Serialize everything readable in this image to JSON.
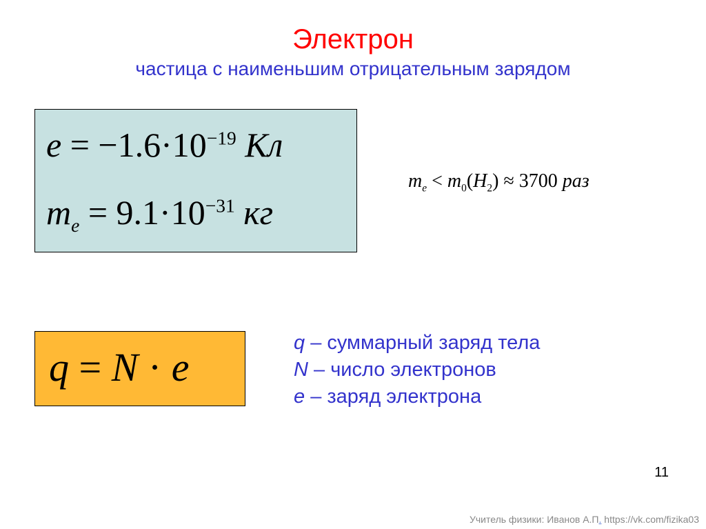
{
  "title": {
    "main": "Электрон",
    "sub": "частица с наименьшим отрицательным зарядом",
    "main_color": "#ff0000",
    "sub_color": "#3333cc",
    "main_fontsize": 40,
    "sub_fontsize": 28
  },
  "box1": {
    "bg": "#c7e1e1",
    "border": "#000000",
    "formula_e": {
      "lhs": "e",
      "eq": "=",
      "sign": "−",
      "coef": "1.6",
      "mult": "·",
      "base": "10",
      "exp": "−19",
      "unit": "Кл"
    },
    "formula_me": {
      "lhs_sym": "m",
      "lhs_sub": "e",
      "eq": "=",
      "coef": "9.1",
      "mult": "·",
      "base": "10",
      "exp": "−31",
      "unit": "кг"
    }
  },
  "side": {
    "m": "m",
    "e": "e",
    "lt": "<",
    "m0": "m",
    "zero": "0",
    "open": "(",
    "H": "H",
    "two": "2",
    "close": ")",
    "approx": "≈",
    "val": "3700",
    "unit": "раз"
  },
  "box2": {
    "bg": "#ffb935",
    "border": "#000000",
    "formula_q": {
      "lhs": "q",
      "eq": "=",
      "N": "N",
      "mult": "·",
      "e": "e"
    }
  },
  "legend": {
    "color": "#3333cc",
    "q_sym": "q",
    "q_txt": " – суммарный заряд тела",
    "n_sym": "N",
    "n_txt": " – число электронов",
    "e_sym": "e",
    "e_txt": " – заряд электрона"
  },
  "page": "11",
  "footer": {
    "text1": "Учитель физики: Иванов А.П",
    "dot": ".",
    "text2": " https://vk.com/fizika03"
  }
}
